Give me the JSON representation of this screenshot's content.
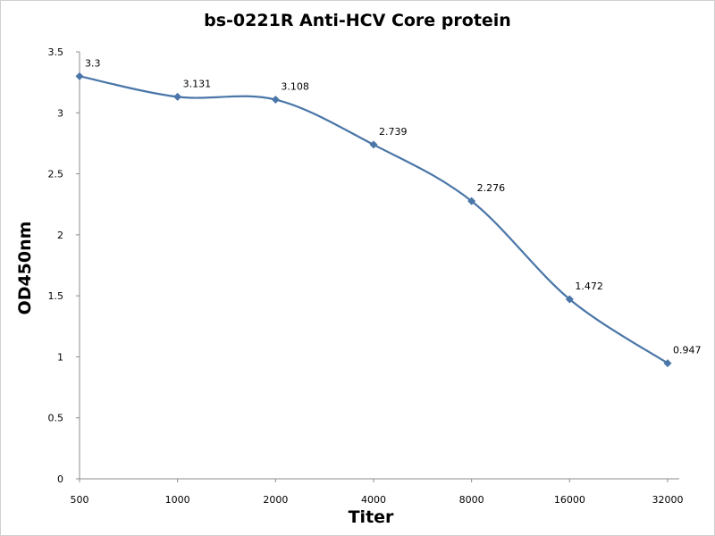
{
  "chart_data": {
    "type": "line",
    "title": "bs-0221R Anti-HCV Core protein",
    "xlabel": "Titer",
    "ylabel": "OD450nm",
    "categories": [
      "500",
      "1000",
      "2000",
      "4000",
      "8000",
      "16000",
      "32000"
    ],
    "series": [
      {
        "values": [
          3.3,
          3.131,
          3.108,
          2.739,
          2.276,
          1.472,
          0.947
        ],
        "labels": [
          "3.3",
          "3.131",
          "3.108",
          "2.739",
          "2.276",
          "1.472",
          "0.947"
        ],
        "color": "#4a76a8",
        "marker": "diamond",
        "smooth": true
      }
    ],
    "ylim": [
      0,
      3.5
    ],
    "yticks": [
      0,
      0.5,
      1,
      1.5,
      2,
      2.5,
      3,
      3.5
    ],
    "ytick_labels": [
      "0",
      "0.5",
      "1",
      "1.5",
      "2",
      "2.5",
      "3",
      "3.5"
    ],
    "grid": false,
    "legend": "none"
  }
}
